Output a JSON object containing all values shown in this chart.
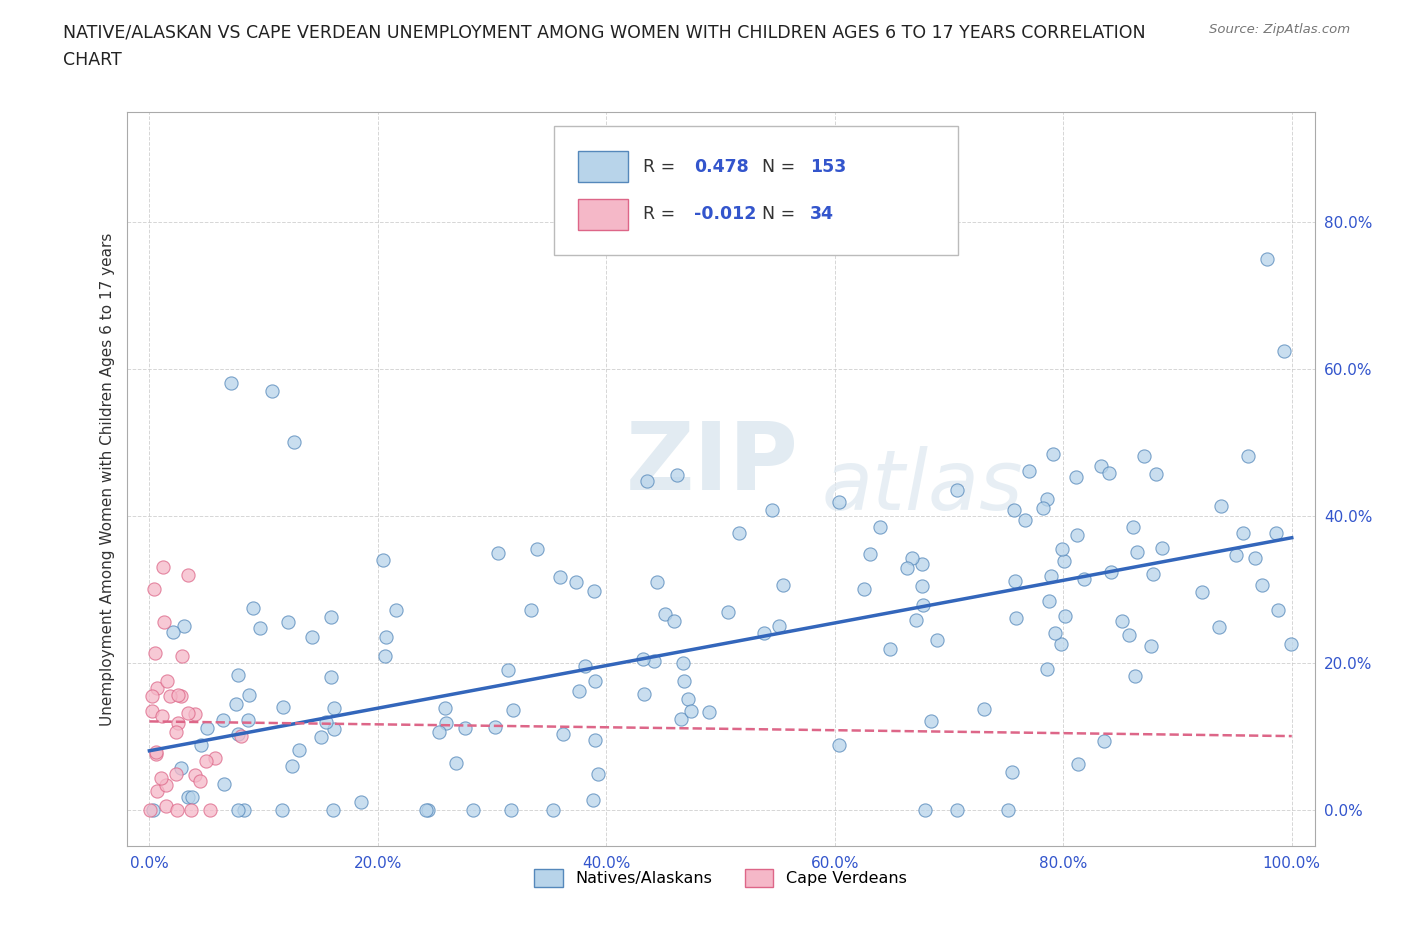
{
  "title_line1": "NATIVE/ALASKAN VS CAPE VERDEAN UNEMPLOYMENT AMONG WOMEN WITH CHILDREN AGES 6 TO 17 YEARS CORRELATION",
  "title_line2": "CHART",
  "source_text": "Source: ZipAtlas.com",
  "ylabel": "Unemployment Among Women with Children Ages 6 to 17 years",
  "xlim": [
    -0.02,
    1.02
  ],
  "ylim": [
    -0.05,
    0.95
  ],
  "xticks": [
    0.0,
    0.2,
    0.4,
    0.6,
    0.8,
    1.0
  ],
  "yticks": [
    0.0,
    0.2,
    0.4,
    0.6,
    0.8
  ],
  "xticklabels": [
    "0.0%",
    "20.0%",
    "40.0%",
    "60.0%",
    "80.0%",
    "100.0%"
  ],
  "yticklabels": [
    "0.0%",
    "20.0%",
    "40.0%",
    "60.0%",
    "80.0%"
  ],
  "group1_label": "Natives/Alaskans",
  "group2_label": "Cape Verdeans",
  "group1_color": "#b8d4ea",
  "group2_color": "#f5b8c8",
  "group1_edge": "#5588bb",
  "group2_edge": "#dd6688",
  "trend1_color": "#3366bb",
  "trend2_color": "#dd6688",
  "R1": 0.478,
  "N1": 153,
  "R2": -0.012,
  "N2": 34,
  "watermark_zip": "ZIP",
  "watermark_atlas": "atlas",
  "background_color": "#ffffff",
  "grid_color": "#cccccc",
  "title_fontsize": 12.5,
  "label_fontsize": 11,
  "tick_fontsize": 11,
  "legend_r_color": "#333333",
  "legend_val_color": "#3355cc",
  "tick_color": "#3355cc"
}
